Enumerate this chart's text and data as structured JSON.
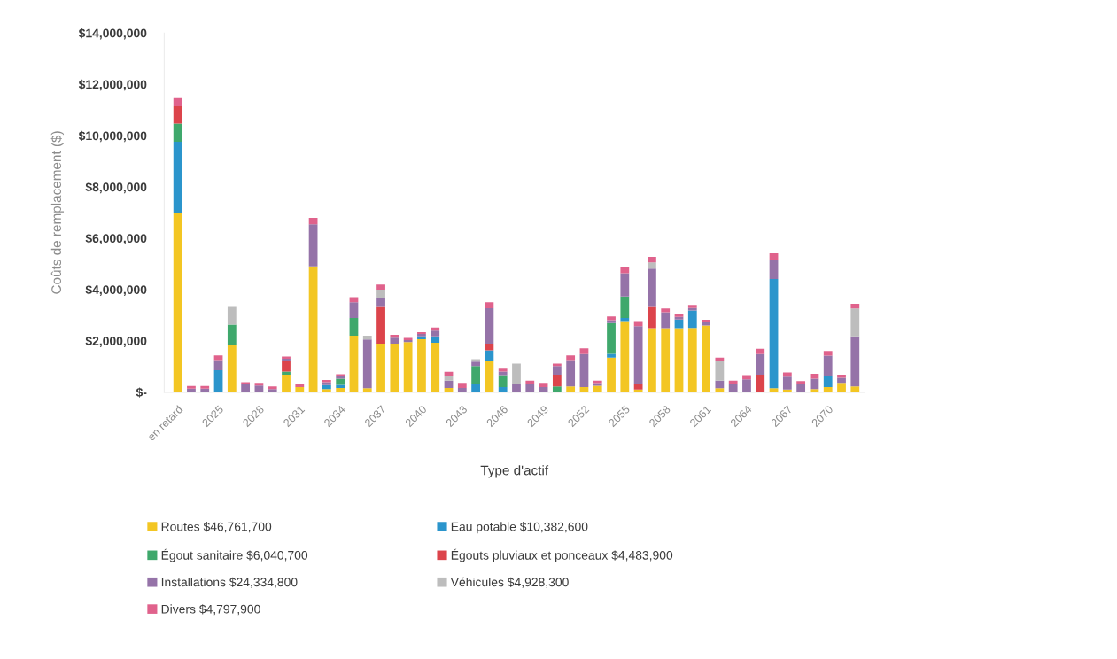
{
  "chart_data": {
    "type": "bar",
    "stacked": true,
    "xlabel": "Type d'actif",
    "ylabel": "Coûts de remplacement ($)",
    "categories": [
      "en retard",
      null,
      null,
      "2025",
      null,
      null,
      "2028",
      null,
      null,
      "2031",
      null,
      null,
      "2034",
      null,
      null,
      "2037",
      null,
      null,
      "2040",
      null,
      null,
      "2043",
      null,
      null,
      "2046",
      null,
      null,
      "2049",
      null,
      null,
      "2052",
      null,
      null,
      "2055",
      null,
      null,
      "2058",
      null,
      null,
      "2061",
      null,
      null,
      "2064",
      null,
      null,
      "2067",
      null,
      null,
      "2070",
      null,
      null
    ],
    "series": [
      {
        "name": "Routes $46,761,700",
        "color": "#f3c623",
        "values": [
          7000000,
          null,
          null,
          null,
          1830000,
          null,
          null,
          null,
          680000,
          200000,
          4900000,
          120000,
          160000,
          2200000,
          150000,
          1890000,
          1890000,
          1950000,
          2060000,
          1920000,
          160000,
          null,
          null,
          1200000,
          null,
          null,
          null,
          null,
          null,
          220000,
          200000,
          250000,
          1340000,
          2770000,
          100000,
          2490000,
          2490000,
          2490000,
          2500000,
          2600000,
          150000,
          null,
          null,
          null,
          150000,
          100000,
          null,
          120000,
          200000,
          360000,
          220000
        ]
      },
      {
        "name": "Eau potable $10,382,600",
        "color": "#2b95cc",
        "values": [
          2760000,
          null,
          null,
          850000,
          null,
          null,
          null,
          null,
          null,
          null,
          null,
          150000,
          120000,
          null,
          null,
          null,
          null,
          null,
          110000,
          250000,
          null,
          null,
          330000,
          430000,
          200000,
          null,
          null,
          null,
          null,
          null,
          null,
          null,
          150000,
          120000,
          null,
          null,
          null,
          340000,
          680000,
          null,
          null,
          null,
          null,
          null,
          4260000,
          null,
          null,
          null,
          420000,
          null,
          null
        ]
      },
      {
        "name": "Égout sanitaire $6,040,700",
        "color": "#3fa86c",
        "values": [
          710000,
          null,
          null,
          null,
          800000,
          null,
          null,
          null,
          120000,
          null,
          null,
          null,
          240000,
          690000,
          null,
          null,
          null,
          null,
          null,
          null,
          null,
          null,
          690000,
          null,
          460000,
          null,
          null,
          null,
          220000,
          null,
          null,
          null,
          1200000,
          840000,
          null,
          null,
          null,
          null,
          null,
          null,
          null,
          null,
          null,
          null,
          null,
          null,
          null,
          null,
          null,
          null,
          null
        ]
      },
      {
        "name": "Égouts pluviaux et ponceaux $4,483,900",
        "color": "#dc444b",
        "values": [
          670000,
          null,
          null,
          null,
          null,
          null,
          null,
          null,
          400000,
          null,
          null,
          null,
          null,
          null,
          null,
          1430000,
          null,
          null,
          null,
          null,
          null,
          null,
          null,
          260000,
          null,
          null,
          null,
          null,
          460000,
          null,
          null,
          null,
          null,
          null,
          200000,
          830000,
          null,
          null,
          null,
          null,
          null,
          null,
          null,
          680000,
          null,
          null,
          null,
          null,
          null,
          null,
          null
        ]
      },
      {
        "name": "Installations $24,334,800",
        "color": "#9573a8",
        "values": [
          null,
          140000,
          140000,
          400000,
          null,
          300000,
          260000,
          120000,
          100000,
          null,
          1640000,
          120000,
          100000,
          610000,
          1900000,
          350000,
          230000,
          80000,
          100000,
          230000,
          290000,
          160000,
          170000,
          1380000,
          140000,
          330000,
          300000,
          200000,
          340000,
          1030000,
          1280000,
          100000,
          110000,
          900000,
          2270000,
          1490000,
          620000,
          100000,
          100000,
          120000,
          300000,
          300000,
          500000,
          800000,
          750000,
          500000,
          300000,
          400000,
          800000,
          200000,
          1950000
        ]
      },
      {
        "name": "Véhicules $4,928,300",
        "color": "#bdbdbd",
        "values": [
          null,
          null,
          null,
          null,
          690000,
          null,
          null,
          null,
          null,
          null,
          null,
          null,
          null,
          null,
          150000,
          320000,
          null,
          null,
          null,
          null,
          170000,
          null,
          90000,
          null,
          null,
          780000,
          null,
          null,
          null,
          null,
          null,
          null,
          null,
          null,
          null,
          250000,
          null,
          null,
          null,
          null,
          750000,
          null,
          null,
          null,
          null,
          null,
          null,
          null,
          null,
          null,
          1090000
        ]
      },
      {
        "name": "Divers $4,797,900",
        "color": "#e0628c",
        "values": [
          320000,
          100000,
          100000,
          180000,
          null,
          90000,
          100000,
          100000,
          90000,
          110000,
          250000,
          80000,
          80000,
          200000,
          null,
          200000,
          110000,
          80000,
          70000,
          120000,
          170000,
          200000,
          null,
          230000,
          110000,
          null,
          150000,
          160000,
          90000,
          180000,
          230000,
          100000,
          150000,
          240000,
          200000,
          210000,
          150000,
          100000,
          120000,
          100000,
          140000,
          150000,
          160000,
          210000,
          250000,
          170000,
          130000,
          190000,
          180000,
          120000,
          180000
        ]
      }
    ],
    "ylim": [
      0,
      14000000
    ],
    "yticks": [
      {
        "value": 0,
        "label": "$-"
      },
      {
        "value": 2000000,
        "label": "$2,000,000"
      },
      {
        "value": 4000000,
        "label": "$4,000,000"
      },
      {
        "value": 6000000,
        "label": "$6,000,000"
      },
      {
        "value": 8000000,
        "label": "$8,000,000"
      },
      {
        "value": 10000000,
        "label": "$10,000,000"
      },
      {
        "value": 12000000,
        "label": "$12,000,000"
      },
      {
        "value": 14000000,
        "label": "$14,000,000"
      }
    ],
    "grid": false,
    "legend": "bottom"
  }
}
